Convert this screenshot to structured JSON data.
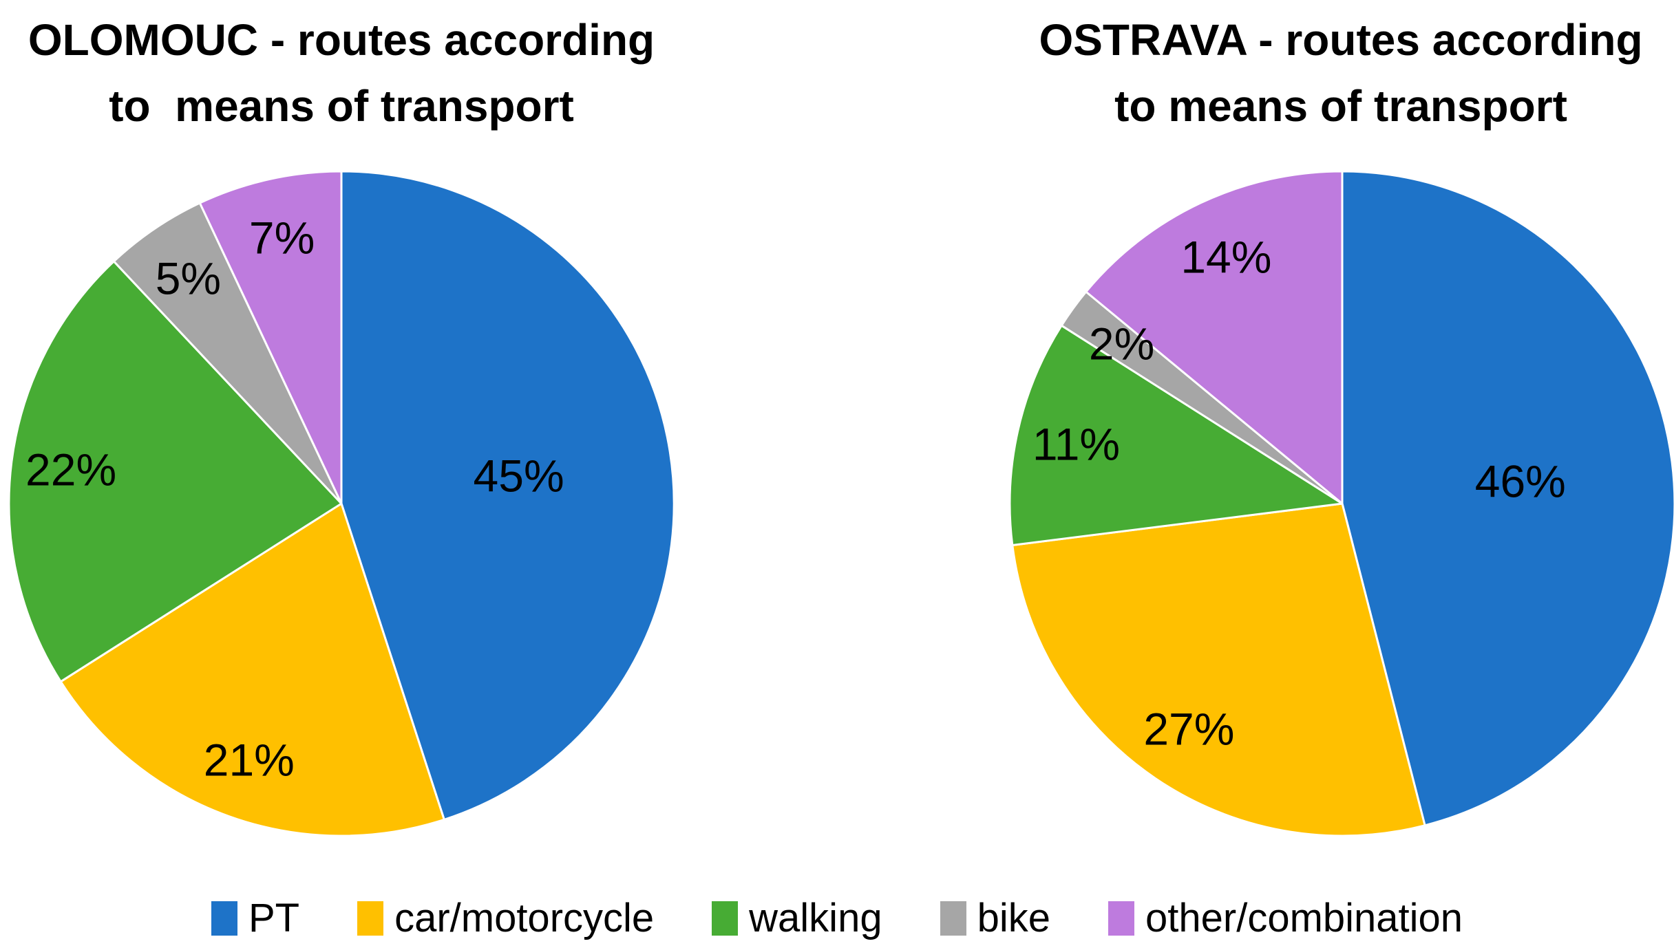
{
  "page": {
    "background": "#FFFFFF",
    "text_color": "#000000"
  },
  "charts": [
    {
      "title_line1": "OLOMOUC - routes according",
      "title_line2": "to  means of transport"
    },
    {
      "title_line1": "OSTRAVA - routes according",
      "title_line2": "to means of transport"
    }
  ],
  "legend": {
    "items": [
      {
        "label": "PT",
        "color": "#1E73C8"
      },
      {
        "label": "car/motorcycle",
        "color": "#FFC000"
      },
      {
        "label": "walking",
        "color": "#47AC34"
      },
      {
        "label": "bike",
        "color": "#A6A6A6"
      },
      {
        "label": "other/combination",
        "color": "#BE7BDE"
      }
    ]
  },
  "chart_data": [
    {
      "type": "pie",
      "title": "OLOMOUC - routes according to  means of transport",
      "categories": [
        "PT",
        "car/motorcycle",
        "walking",
        "bike",
        "other/combination"
      ],
      "values": [
        45,
        21,
        22,
        5,
        7
      ],
      "data_labels": [
        "45%",
        "21%",
        "22%",
        "5%",
        "7%"
      ],
      "colors": [
        "#1E73C8",
        "#FFC000",
        "#47AC34",
        "#A6A6A6",
        "#BE7BDE"
      ],
      "unit": "percent",
      "start_angle_deg": 0,
      "direction": "clockwise",
      "legend_position": "bottom",
      "data_label_position": "inside"
    },
    {
      "type": "pie",
      "title": "OSTRAVA - routes according to means of transport",
      "categories": [
        "PT",
        "car/motorcycle",
        "walking",
        "bike",
        "other/combination"
      ],
      "values": [
        46,
        27,
        11,
        2,
        14
      ],
      "data_labels": [
        "46%",
        "27%",
        "11%",
        "2%",
        "14%"
      ],
      "colors": [
        "#1E73C8",
        "#FFC000",
        "#47AC34",
        "#A6A6A6",
        "#BE7BDE"
      ],
      "unit": "percent",
      "start_angle_deg": 0,
      "direction": "clockwise",
      "legend_position": "bottom",
      "data_label_position": "inside"
    }
  ]
}
